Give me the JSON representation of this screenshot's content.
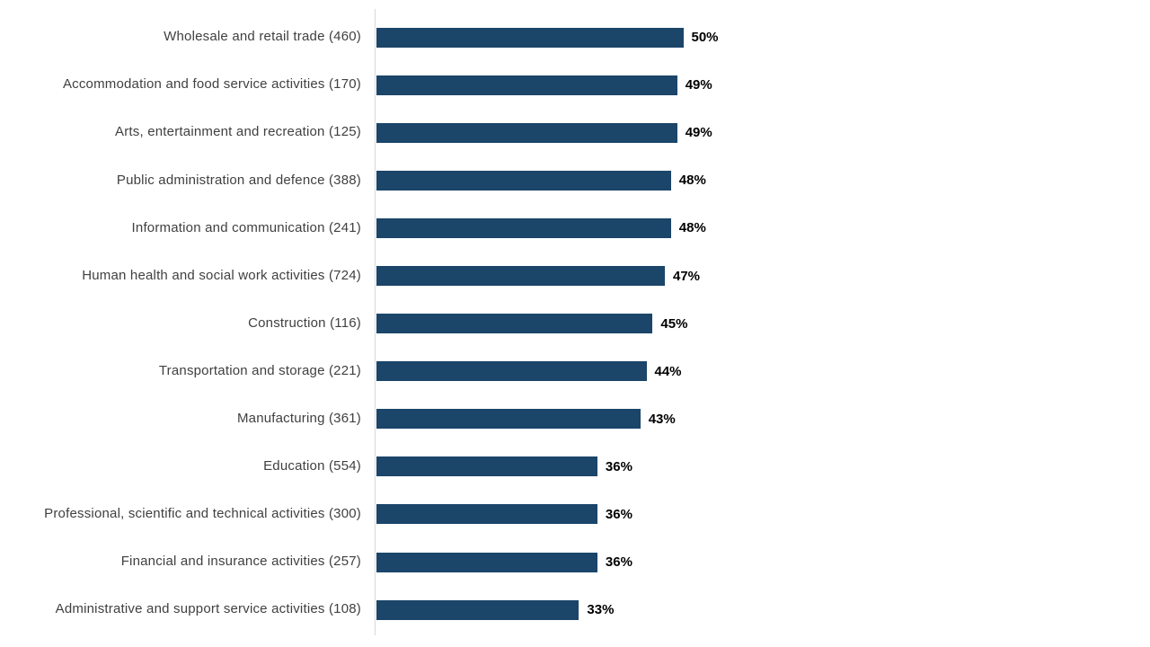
{
  "page": {
    "background": "#FFFFFF"
  },
  "chart_data": {
    "type": "bar",
    "orientation": "horizontal",
    "title": "",
    "xlabel": "",
    "ylabel": "",
    "grid": false,
    "legend": false,
    "xlim": [
      0,
      50
    ],
    "bar_color": "#1B4569",
    "axis_line_color": "#D9D9D9",
    "category_label_color": "#404040",
    "value_label_color": "#000000",
    "categories": [
      "Wholesale and retail trade  (460)",
      "Accommodation and food service activities (170)",
      "Arts, entertainment and recreation (125)",
      "Public administration and defence  (388)",
      "Information and communication (241)",
      "Human health and social work activities (724)",
      "Construction (116)",
      "Transportation and storage  (221)",
      "Manufacturing (361)",
      "Education (554)",
      "Professional, scientific and technical activities (300)",
      "Financial and insurance activities (257)",
      "Administrative and support service activities (108)"
    ],
    "sample_sizes": [
      460,
      170,
      125,
      388,
      241,
      724,
      116,
      221,
      361,
      554,
      300,
      257,
      108
    ],
    "values": [
      50,
      49,
      49,
      48,
      48,
      47,
      45,
      44,
      43,
      36,
      36,
      36,
      33
    ],
    "value_labels": [
      "50%",
      "49%",
      "49%",
      "48%",
      "48%",
      "47%",
      "45%",
      "44%",
      "43%",
      "36%",
      "36%",
      "36%",
      "33%"
    ]
  }
}
